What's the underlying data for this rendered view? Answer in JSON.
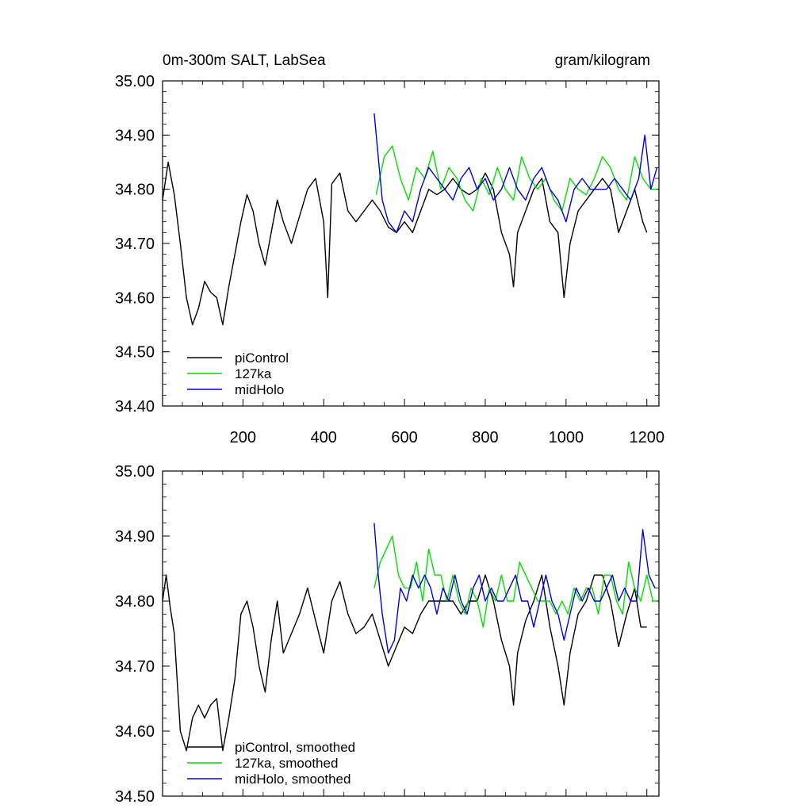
{
  "chart_data": [
    {
      "type": "line",
      "title_left": "0m-300m SALT, LabSea",
      "title_right": "gram/kilogram",
      "xlabel": "",
      "ylabel": "",
      "xlim": [
        1,
        1230
      ],
      "ylim": [
        34.4,
        35.0
      ],
      "yticks": [
        "35.00",
        "34.90",
        "34.80",
        "34.70",
        "34.60",
        "34.50",
        "34.40"
      ],
      "xticks": [
        "200",
        "400",
        "600",
        "800",
        "1000",
        "1200"
      ],
      "legend": [
        "piControl",
        "127ka",
        "midHolo"
      ],
      "series": [
        {
          "name": "piControl",
          "color": "#000000",
          "x": [
            1,
            15,
            30,
            45,
            60,
            75,
            90,
            105,
            120,
            135,
            150,
            165,
            180,
            195,
            210,
            225,
            240,
            255,
            270,
            285,
            300,
            320,
            340,
            360,
            380,
            400,
            410,
            420,
            440,
            460,
            480,
            500,
            520,
            540,
            560,
            580,
            600,
            620,
            640,
            660,
            680,
            700,
            720,
            740,
            760,
            780,
            800,
            820,
            840,
            860,
            870,
            880,
            900,
            920,
            940,
            960,
            980,
            995,
            1010,
            1030,
            1050,
            1070,
            1090,
            1110,
            1130,
            1150,
            1170,
            1190,
            1200
          ],
          "values": [
            34.78,
            34.85,
            34.79,
            34.7,
            34.6,
            34.55,
            34.58,
            34.63,
            34.61,
            34.6,
            34.55,
            34.62,
            34.68,
            34.74,
            34.79,
            34.76,
            34.7,
            34.66,
            34.72,
            34.78,
            34.74,
            34.7,
            34.75,
            34.8,
            34.82,
            34.74,
            34.6,
            34.81,
            34.83,
            34.76,
            34.74,
            34.76,
            34.78,
            34.76,
            34.73,
            34.72,
            34.74,
            34.72,
            34.76,
            34.8,
            34.79,
            34.8,
            34.82,
            34.8,
            34.79,
            34.8,
            34.83,
            34.8,
            34.72,
            34.68,
            34.62,
            34.72,
            34.76,
            34.8,
            34.82,
            34.74,
            34.72,
            34.6,
            34.7,
            34.76,
            34.78,
            34.8,
            34.82,
            34.8,
            34.72,
            34.76,
            34.8,
            34.74,
            34.72
          ]
        },
        {
          "name": "127ka",
          "color": "#00dd00",
          "x": [
            530,
            550,
            570,
            590,
            610,
            630,
            650,
            670,
            690,
            710,
            730,
            750,
            770,
            790,
            810,
            830,
            850,
            870,
            890,
            910,
            930,
            950,
            970,
            990,
            1010,
            1030,
            1050,
            1070,
            1090,
            1110,
            1130,
            1150,
            1170,
            1190,
            1210,
            1225
          ],
          "values": [
            34.79,
            34.86,
            34.88,
            34.82,
            34.78,
            34.84,
            34.82,
            34.87,
            34.8,
            34.84,
            34.82,
            34.78,
            34.76,
            34.82,
            34.79,
            34.84,
            34.8,
            34.78,
            34.86,
            34.82,
            34.8,
            34.82,
            34.78,
            34.76,
            34.82,
            34.8,
            34.79,
            34.82,
            34.86,
            34.84,
            34.8,
            34.78,
            34.86,
            34.82,
            34.8,
            34.8
          ]
        },
        {
          "name": "midHolo",
          "color": "#0000dd",
          "x": [
            525,
            535,
            545,
            560,
            580,
            600,
            620,
            640,
            660,
            680,
            700,
            720,
            740,
            760,
            780,
            800,
            820,
            840,
            860,
            880,
            900,
            920,
            940,
            960,
            980,
            1000,
            1020,
            1040,
            1060,
            1080,
            1100,
            1120,
            1140,
            1160,
            1180,
            1195,
            1210,
            1225
          ],
          "values": [
            34.94,
            34.86,
            34.78,
            34.74,
            34.72,
            34.76,
            34.74,
            34.8,
            34.84,
            34.82,
            34.8,
            34.78,
            34.82,
            34.84,
            34.8,
            34.82,
            34.78,
            34.8,
            34.84,
            34.8,
            34.78,
            34.82,
            34.84,
            34.8,
            34.78,
            34.74,
            34.8,
            34.82,
            34.8,
            34.8,
            34.8,
            34.82,
            34.8,
            34.78,
            34.82,
            34.9,
            34.8,
            34.84
          ]
        }
      ]
    },
    {
      "type": "line",
      "xlim": [
        1,
        1230
      ],
      "ylim": [
        34.5,
        35.0
      ],
      "yticks": [
        "35.00",
        "34.90",
        "34.80",
        "34.70",
        "34.60",
        "34.50"
      ],
      "legend": [
        "piControl, smoothed",
        "127ka, smoothed",
        "midHolo, smoothed"
      ],
      "series": [
        {
          "name": "piControl, smoothed",
          "color": "#000000",
          "x": [
            1,
            10,
            20,
            30,
            45,
            60,
            75,
            90,
            105,
            120,
            135,
            150,
            165,
            180,
            195,
            210,
            225,
            240,
            255,
            270,
            285,
            300,
            320,
            340,
            360,
            380,
            400,
            420,
            440,
            460,
            480,
            500,
            520,
            540,
            560,
            580,
            600,
            620,
            640,
            660,
            680,
            700,
            720,
            740,
            760,
            780,
            800,
            820,
            840,
            860,
            870,
            880,
            900,
            920,
            940,
            960,
            980,
            995,
            1010,
            1030,
            1050,
            1070,
            1090,
            1110,
            1130,
            1150,
            1170,
            1185,
            1200
          ],
          "values": [
            34.8,
            34.84,
            34.79,
            34.75,
            34.6,
            34.57,
            34.62,
            34.64,
            34.62,
            34.64,
            34.65,
            34.57,
            34.62,
            34.68,
            34.78,
            34.8,
            34.76,
            34.7,
            34.66,
            34.74,
            34.8,
            34.72,
            34.75,
            34.78,
            34.82,
            34.77,
            34.72,
            34.8,
            34.83,
            34.78,
            34.75,
            34.76,
            34.78,
            34.74,
            34.7,
            34.73,
            34.76,
            34.75,
            34.78,
            34.8,
            34.8,
            34.8,
            34.8,
            34.78,
            34.8,
            34.8,
            34.84,
            34.8,
            34.74,
            34.7,
            34.64,
            34.72,
            34.77,
            34.8,
            34.84,
            34.76,
            34.7,
            34.64,
            34.72,
            34.78,
            34.8,
            34.84,
            34.84,
            34.8,
            34.73,
            34.78,
            34.82,
            34.76,
            34.76
          ]
        },
        {
          "name": "127ka, smoothed",
          "color": "#00dd00",
          "x": [
            525,
            540,
            555,
            570,
            585,
            600,
            615,
            630,
            645,
            660,
            675,
            690,
            705,
            720,
            735,
            750,
            765,
            780,
            795,
            810,
            825,
            840,
            855,
            870,
            885,
            900,
            915,
            930,
            945,
            960,
            975,
            990,
            1005,
            1020,
            1035,
            1050,
            1065,
            1080,
            1095,
            1110,
            1125,
            1140,
            1155,
            1170,
            1185,
            1200,
            1215,
            1225
          ],
          "values": [
            34.82,
            34.86,
            34.88,
            34.9,
            34.84,
            34.82,
            34.82,
            34.86,
            34.8,
            34.88,
            34.84,
            34.84,
            34.8,
            34.84,
            34.8,
            34.78,
            34.82,
            34.8,
            34.76,
            34.82,
            34.8,
            34.84,
            34.8,
            34.8,
            34.86,
            34.84,
            34.82,
            34.8,
            34.8,
            34.8,
            34.78,
            34.8,
            34.78,
            34.82,
            34.8,
            34.82,
            34.82,
            34.78,
            34.84,
            34.84,
            34.8,
            34.78,
            34.86,
            34.82,
            34.8,
            34.84,
            34.8,
            34.8
          ]
        },
        {
          "name": "midHolo, smoothed",
          "color": "#0000dd",
          "x": [
            525,
            535,
            545,
            560,
            575,
            590,
            605,
            620,
            635,
            650,
            665,
            680,
            695,
            710,
            725,
            740,
            755,
            770,
            785,
            800,
            815,
            830,
            845,
            860,
            875,
            890,
            905,
            920,
            935,
            950,
            965,
            980,
            995,
            1010,
            1025,
            1040,
            1055,
            1070,
            1085,
            1100,
            1115,
            1130,
            1145,
            1160,
            1175,
            1190,
            1205,
            1220
          ],
          "values": [
            34.92,
            34.84,
            34.78,
            34.72,
            34.74,
            34.82,
            34.8,
            34.84,
            34.82,
            34.84,
            34.82,
            34.78,
            34.82,
            34.8,
            34.84,
            34.8,
            34.78,
            34.82,
            34.84,
            34.8,
            34.82,
            34.8,
            34.8,
            34.82,
            34.84,
            34.8,
            34.8,
            34.76,
            34.8,
            34.84,
            34.8,
            34.78,
            34.74,
            34.78,
            34.82,
            34.8,
            34.82,
            34.8,
            34.8,
            34.82,
            34.84,
            34.8,
            34.82,
            34.8,
            34.8,
            34.91,
            34.84,
            34.82
          ]
        }
      ]
    }
  ]
}
